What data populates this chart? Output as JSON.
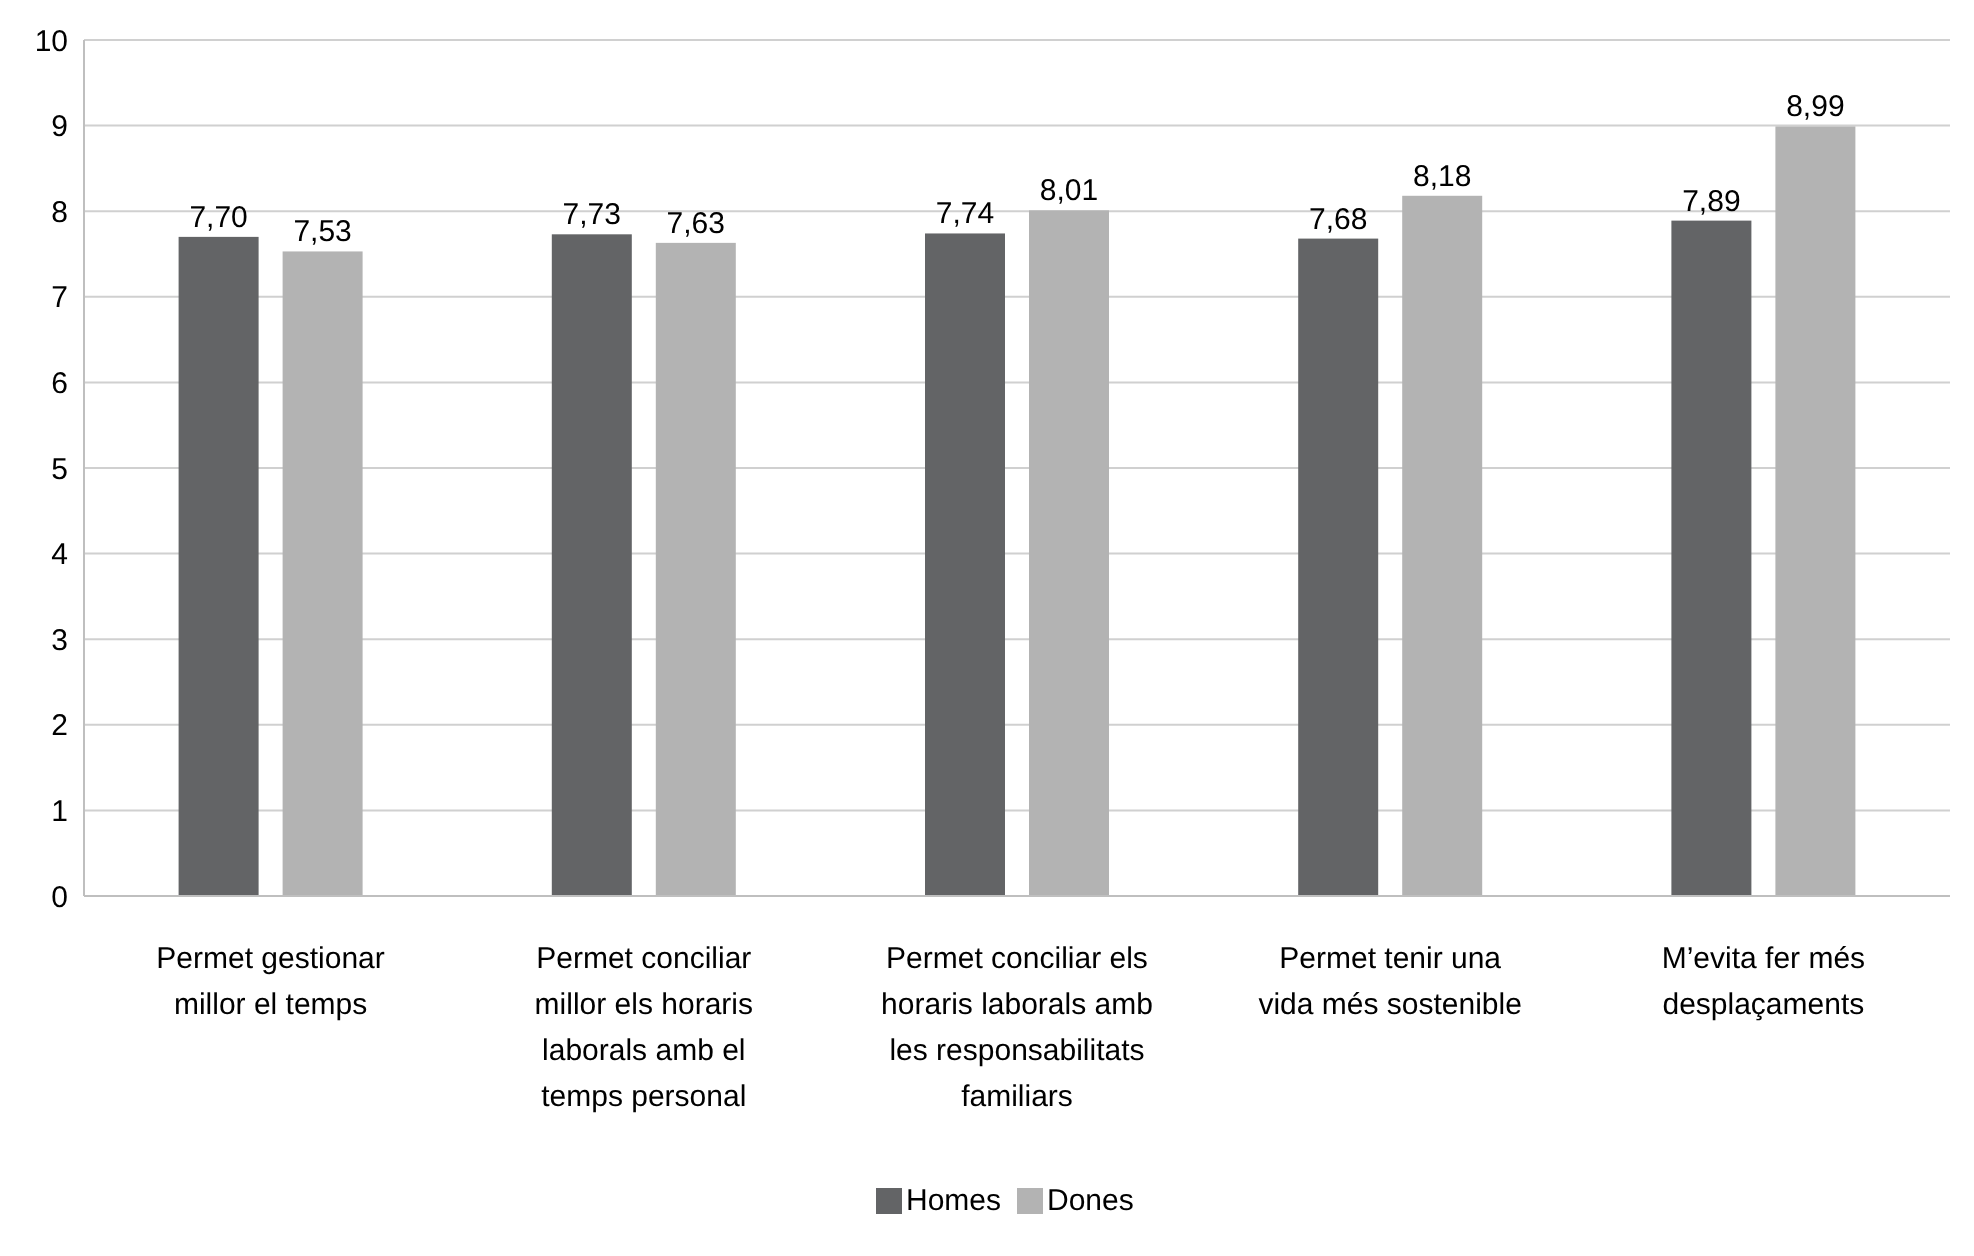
{
  "chart_data": {
    "type": "bar",
    "categories": [
      "Permet gestionar millor el temps",
      "Permet conciliar millor els horaris laborals amb el temps personal",
      "Permet conciliar els horaris laborals amb les responsabilitats familiars",
      "Permet tenir una vida més sostenible",
      "M’evita fer més desplaçaments"
    ],
    "series": [
      {
        "name": "Homes",
        "color": "#636466",
        "values": [
          7.7,
          7.73,
          7.74,
          7.68,
          7.89
        ],
        "value_labels": [
          "7,70",
          "7,73",
          "7,74",
          "7,68",
          "7,89"
        ]
      },
      {
        "name": "Dones",
        "color": "#b3b3b3",
        "values": [
          7.53,
          7.63,
          8.01,
          8.18,
          8.99
        ],
        "value_labels": [
          "7,53",
          "7,63",
          "8,01",
          "8,18",
          "8,99"
        ]
      }
    ],
    "ylim": [
      0,
      10
    ],
    "yticks": [
      0,
      1,
      2,
      3,
      4,
      5,
      6,
      7,
      8,
      9,
      10
    ],
    "grid": "y",
    "legend": "bottom"
  }
}
